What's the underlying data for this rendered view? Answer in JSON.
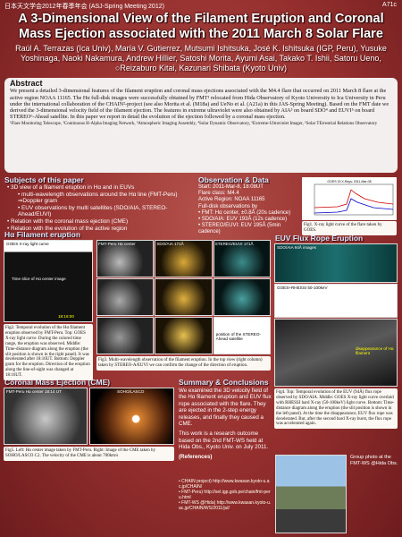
{
  "header": {
    "left": "日本天文学会2012年春季年会 (ASJ-Spring Meeting 2012)",
    "right": "A71c"
  },
  "title": "A 3-Dimensional View of the Filament Eruption and Coronal Mass Ejection associated with the 2011 March 8 Solar Flare",
  "authors": "Raúl A. Terrazas (Ica Univ), María V. Gutierrez, Mutsumi Ishitsuka, José K. Ishitsuka (IGP, Peru), Yusuke Yoshinaga, Naoki Nakamura, Andrew Hillier, Satoshi Morita, Ayumi Asai, Takako T. Ishii, Satoru Ueno, ○Reizaburo Kitai, Kazunari Shibata (Kyoto Univ)",
  "abstract": {
    "heading": "Abstract",
    "text": "We present a detailed 3-dimensional features of the filament eruption and coronal mass ejections associated with the M4.4 flare that occurred on 2011 March 8 flare at the active region NOAA 11165. The Hα full-disk images were successfully obtained by FMT¹ relocated from Hida Observatory of Kyoto University to Ica University in Peru under the international collaboration of the CHAIN²-project (see also Morita et al. (M18a) and UeNo et al. (A21a) in this JAS-Spring Meeting). Based on the FMT date we derived the 3-dimensional velocity field of the filament ejection. The features in extreme ultraviolet were also obtained by AIA³ on board SDO⁴ and EUVI⁵ on board STEREO⁶-Ahead satellite. In this paper we report in detail the evolution of the ejection followed by a coronal mass ejection.",
    "footnote": "¹Flare Monitoring Telescope, ²Continuous H-Alpha Imaging Network, ³Atmospheric Imaging Assembly, ⁴Solar Dynamic Observatory, ⁵Extreme-Ultraviolet Imager, ⁶Solar TErrestrial Relations Observatory"
  },
  "subjects": {
    "heading": "Subjects of this paper",
    "items": [
      "• 3D view of a filament eruption in Hα and in EUVs",
      "• multi-wavelength observations around the Hα line (FMT-Peru) ⇒Doppler gram",
      "• EUV observations by multi satellites (SDO/AIA, STEREO-Ahead/EUVI)",
      "• Relation with the coronal mass ejection (CME)",
      "• Relation with the evolution of the active region"
    ]
  },
  "observation": {
    "heading": "Observation & Data",
    "lines": [
      "Start: 2011-Mar-8, 18:08UT",
      "Flare class: M4.4",
      "Active Region: NOAA 11165",
      "Full-disk observations by",
      "• FMT: Hα center, ±0.8Å (20s cadence)",
      "• SDO/AIA: EUV 193Å (12s cadence)",
      "• STEREO/EUVI: EUV 195Å (5min cadence)"
    ]
  },
  "fig1": {
    "plot_title": "GOES 15 X-Rays: 2011-Mar-08",
    "caption": "Fig1. X-ray light curve of the flare taken by GOES."
  },
  "halpha": {
    "heading": "Hα Filament eruption",
    "labels": [
      "GOES X-ray light curve",
      "Time slice of Hα center image",
      "18:16:00"
    ],
    "caption": "Fig2. Temporal evolution of the Hα filament eruption observed by FMT-Peru. Top: GOES X-ray light curve. During the colored time range, the eruption was observed. Middle: Time-distance diagram along the eruption (the slit position is shown in the right panel). It was decelerated after 18:16UT. Bottom: Doppler gram for the eruption. Direction of the eruption along the line-of-sight was changed at 18:16UT."
  },
  "fig3": {
    "labels": [
      "FMT-Peru Hα center",
      "SDO/AIA 171Å",
      "STEREO/EUVI 171Å",
      "position of the STEREO-Ahead satellite"
    ],
    "caption": "Fig3. Multi-wavelength observation of the filament eruption. In the top view (right column) taken by STEREO-A/EUVI we can confirm the change of the direction of eruption."
  },
  "euv": {
    "heading": "EUV Flux Rope Eruption",
    "labels": [
      "SDO/AIA 94Å images",
      "GOES+RHESSI 50-100keV",
      "disappearance of Hα filament"
    ],
    "caption": "Fig4. Top: Temporal evolution of the EUV (94Å) flux rope observed by SDO/AIA. Middle: GOES X-ray light curve overlaid with RHESSI hard X-ray (50-100keV) light curve. Bottom: Time-distance diagram along the eruption (the slit position is shown in the left panel). At the time the disappearance, EUV flux rope was decelerated. But, after the second hard X-ray burst, the flux rope was accelerated again."
  },
  "cme": {
    "heading": "Coronal Mass Ejection (CME)",
    "labels": [
      "FMT-Peru Hα center 18:14 UT",
      "SOHO/LASCO"
    ],
    "caption": "Fig5. Left: Hα center image taken by FMT-Peru. Right: Image of the CME taken by SOHO/LASCO C2. The velocity of the CME is about 700km/s"
  },
  "summary": {
    "heading": "Summary & Conclusions",
    "paragraphs": [
      "We examined the 3D velocity field of the Hα filament eruption and EUV flux rope associated with the flare. They are ejected in the 2-step energy releases, and finally they caused a CME.",
      "This work is a research outcome based on the 2nd FMT-WS held at Hida Obs., Kyoto Univ. on July 2011."
    ],
    "references_heading": "(References)",
    "references": [
      "• CHAIN project) http://www.kwasan.kyoto-u.ac.jp/CHAIN/",
      "• FMT-Peru) http://sel.igp.gob.pe/chain/fmt-peru.html",
      "• FMT-WS @Hida) http://www.kwasan.kyoto-u.ac.jp/CHAIN/WS/2011/jul/"
    ],
    "photo_caption": "Group photo at the FMT-WS @Hida Obs."
  }
}
